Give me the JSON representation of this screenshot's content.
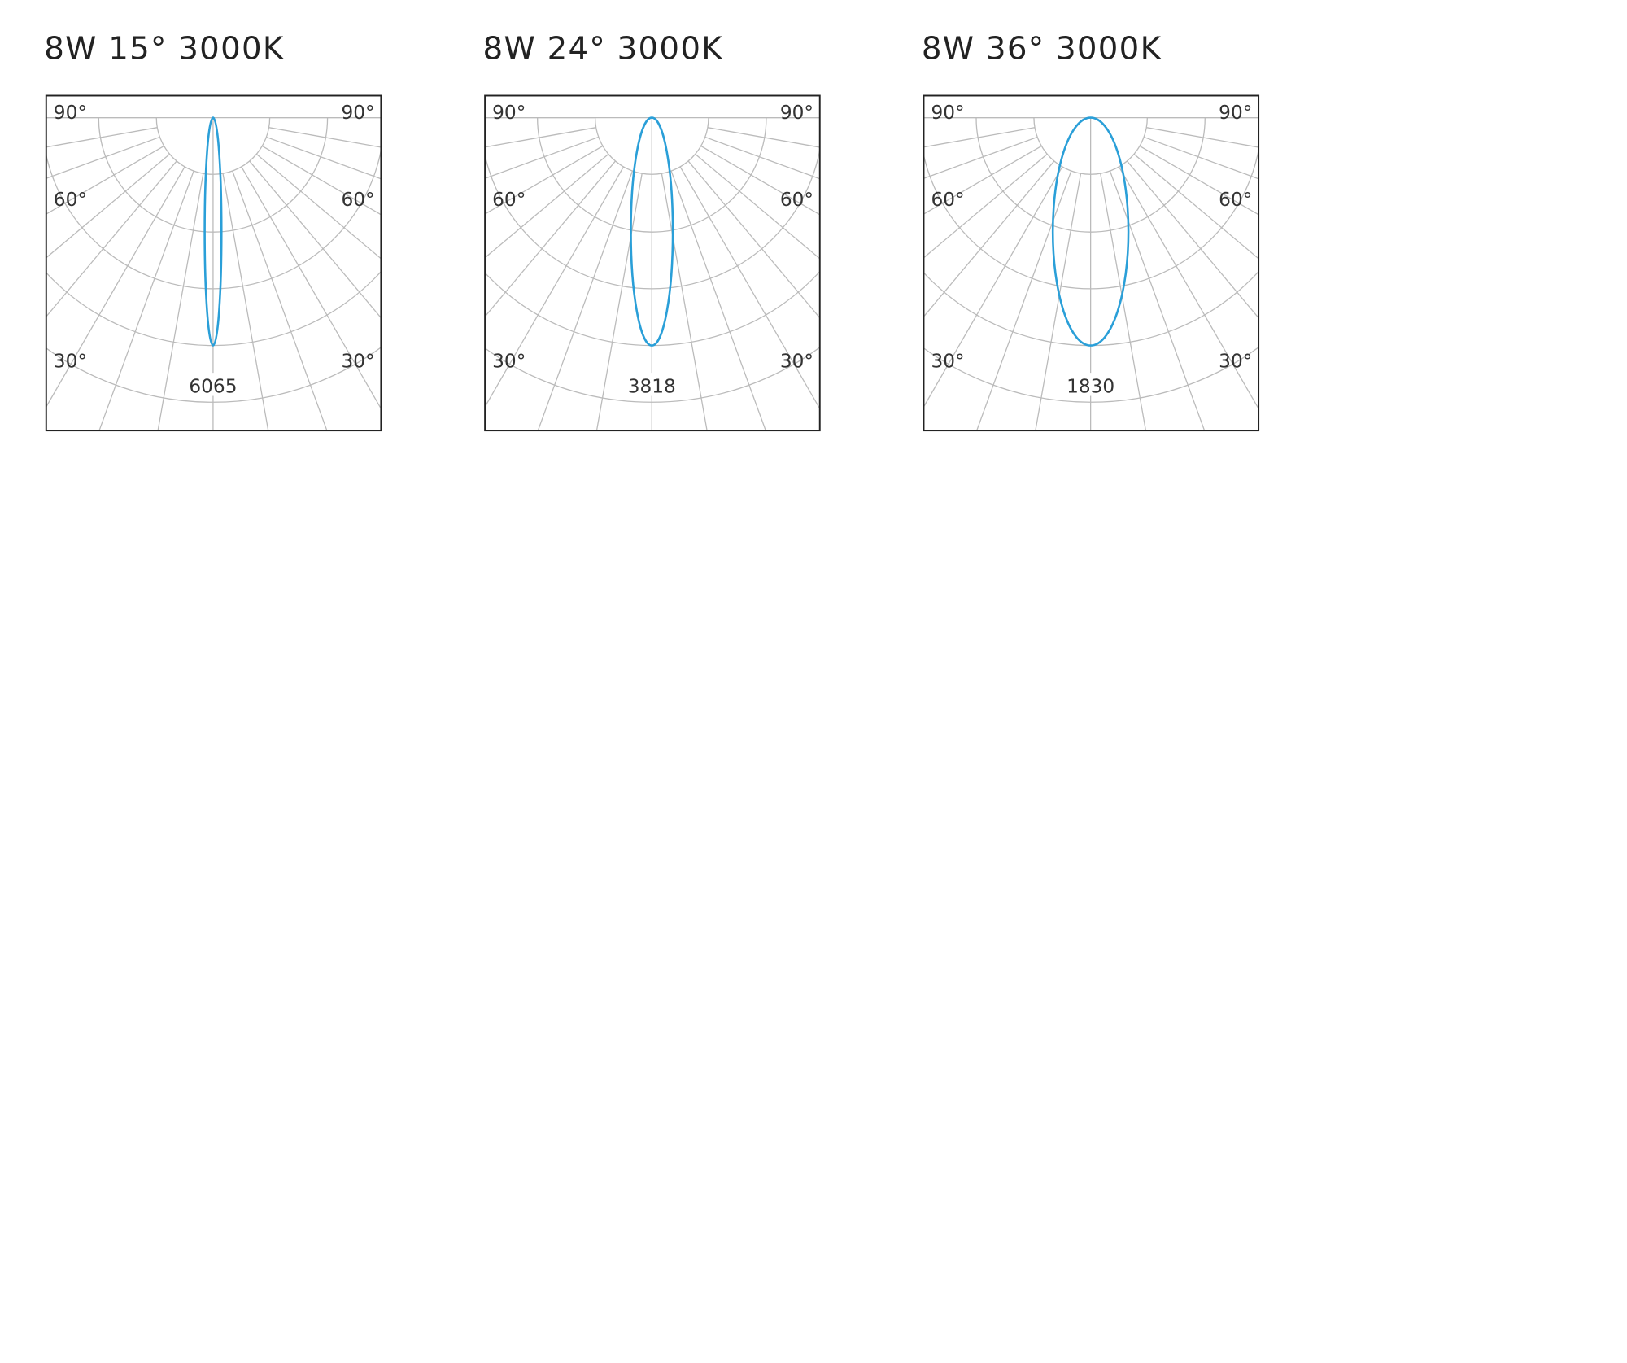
{
  "panels": [
    {
      "title": "8W 15° 3000K",
      "peak": "6065",
      "angle_labels": [
        "90°",
        "60°",
        "30°"
      ]
    },
    {
      "title": "8W 24° 3000K",
      "peak": "3818",
      "angle_labels": [
        "90°",
        "60°",
        "30°"
      ]
    },
    {
      "title": "8W 36° 3000K",
      "peak": "1830",
      "angle_labels": [
        "90°",
        "60°",
        "30°"
      ]
    }
  ]
}
